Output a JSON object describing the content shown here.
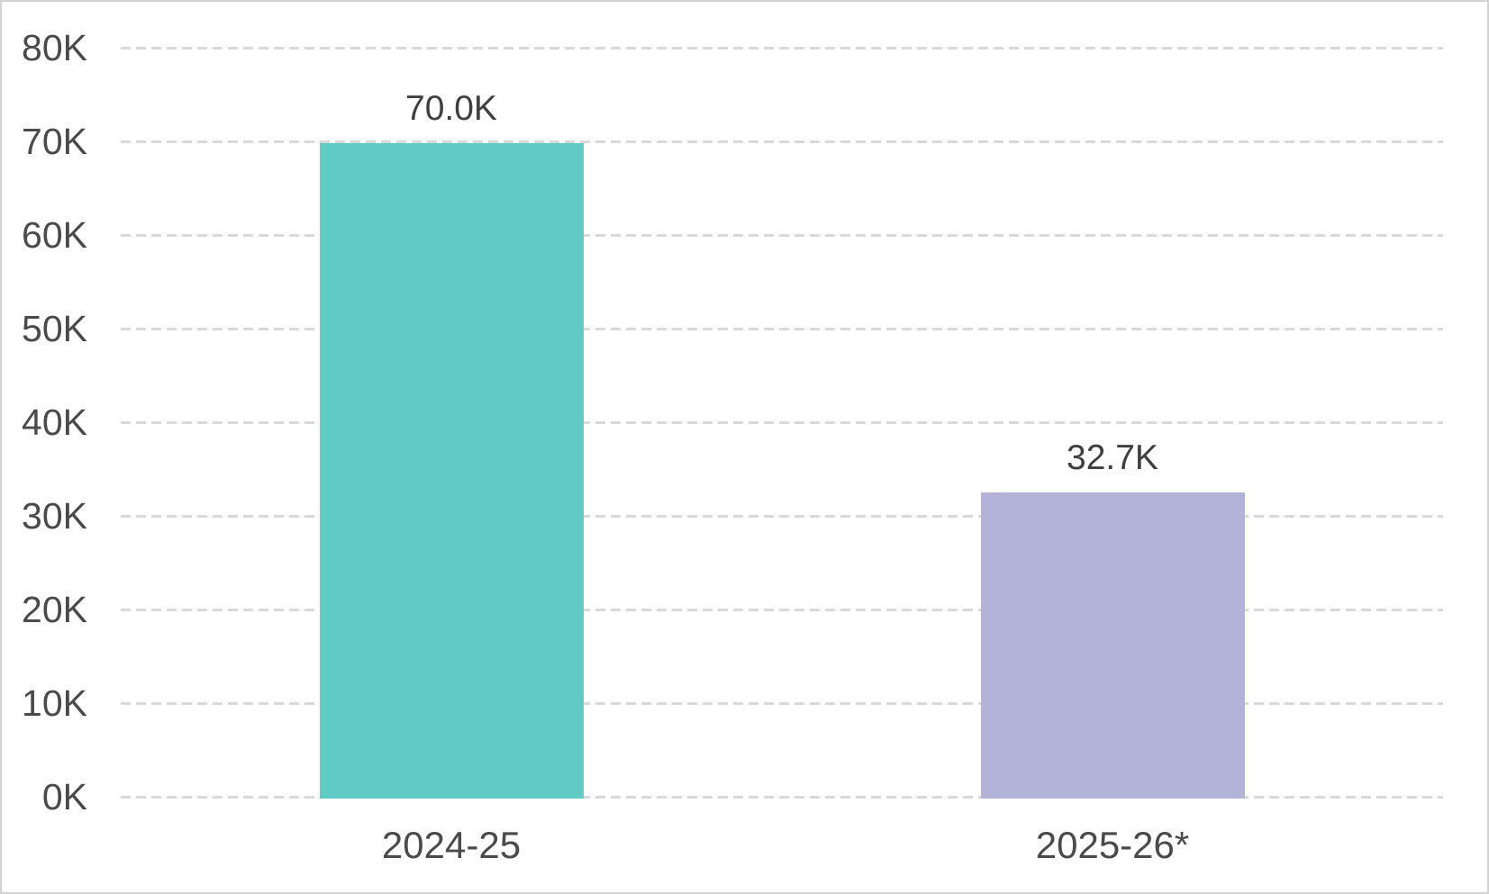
{
  "chart_data": {
    "type": "bar",
    "title": "",
    "xlabel": "",
    "ylabel": "",
    "categories": [
      "2024-25",
      "2025-26*"
    ],
    "values": [
      70000,
      32700
    ],
    "data_labels": [
      "70.0K",
      "32.7K"
    ],
    "bar_colors": [
      "#5fcbc4",
      "#b3b3da"
    ],
    "ylim": [
      0,
      80000
    ],
    "ytick_interval": 10000,
    "ytick_labels": [
      "0K",
      "10K",
      "20K",
      "30K",
      "40K",
      "50K",
      "60K",
      "70K",
      "80K"
    ],
    "grid": "horizontal-dashed",
    "legend": "none"
  },
  "colors": {
    "background": "#ffffff",
    "page_border": "#d3d3d3",
    "gridline": "#d9d9d9",
    "axis_text": "#4a4a4a",
    "data_label_text": "#3f3f3f"
  }
}
